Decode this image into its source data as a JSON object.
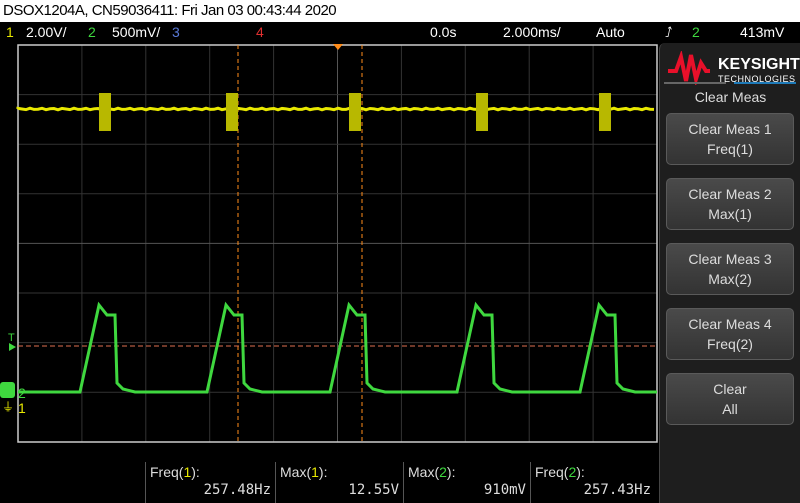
{
  "title": "DSOX1204A, CN59036411: Fri Jan 03 00:43:44 2020",
  "status": {
    "ch1_num": "1",
    "ch1_scale": "2.00V/",
    "ch2_num": "2",
    "ch2_scale": "500mV/",
    "ch3_num": "3",
    "ch4_num": "4",
    "time_delay": "0.0s",
    "time_scale": "2.000ms/",
    "trigger_mode": "Auto",
    "trigger_source": "2",
    "trigger_level": "413mV",
    "trigger_icon": "rising-edge-icon"
  },
  "markers": {
    "trigger": "T",
    "ch2": "2",
    "ch1": "1"
  },
  "colors": {
    "ch1": "#e8e800",
    "ch2": "#3fd83f",
    "ch3": "#5a7ad8",
    "ch4": "#e03030",
    "cursor": "#ff8c1a"
  },
  "brand": {
    "name": "KEYSIGHT",
    "sub": "TECHNOLOGIES"
  },
  "panel": {
    "title": "Clear Meas",
    "softkeys": [
      {
        "line1": "Clear Meas 1",
        "line2": "Freq(1)"
      },
      {
        "line1": "Clear Meas 2",
        "line2": "Max(1)"
      },
      {
        "line1": "Clear Meas 3",
        "line2": "Max(2)"
      },
      {
        "line1": "Clear Meas 4",
        "line2": "Freq(2)"
      },
      {
        "line1": "Clear",
        "line2": "All"
      }
    ]
  },
  "measurements": [
    {
      "name": "Freq",
      "ch": "1",
      "value": "257.48Hz"
    },
    {
      "name": "Max",
      "ch": "1",
      "value": "12.55V"
    },
    {
      "name": "Max",
      "ch": "2",
      "value": "910mV"
    },
    {
      "name": "Freq",
      "ch": "2",
      "value": "257.43Hz"
    }
  ]
}
